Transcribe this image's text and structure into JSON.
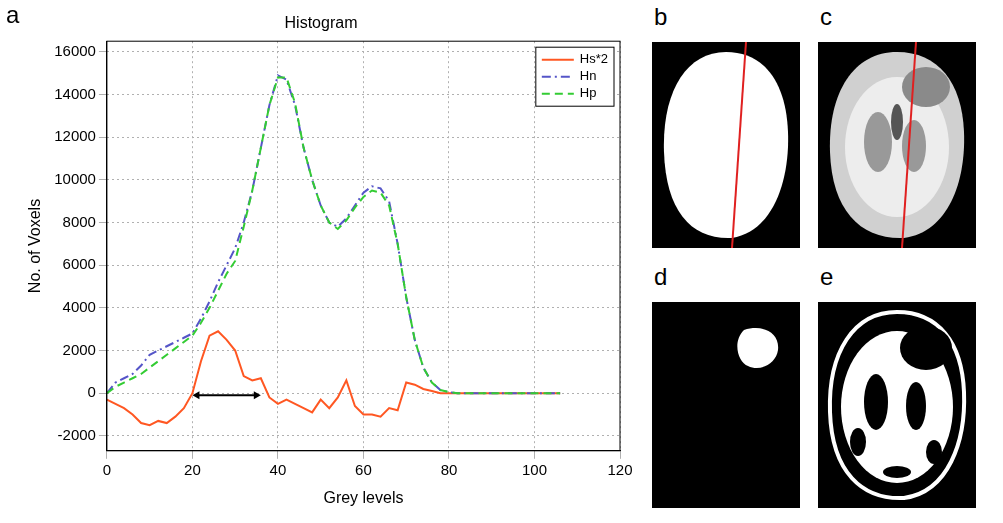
{
  "chart_data": {
    "type": "line",
    "title": "Histogram",
    "x_label": "Grey levels",
    "y_label": "No. of Voxels",
    "x": [
      0,
      2,
      4,
      6,
      8,
      10,
      12,
      14,
      16,
      18,
      20,
      22,
      24,
      26,
      28,
      30,
      32,
      34,
      36,
      38,
      40,
      42,
      44,
      46,
      48,
      50,
      52,
      54,
      56,
      58,
      60,
      62,
      64,
      66,
      68,
      70,
      72,
      74,
      76,
      78,
      80,
      82,
      84,
      86,
      88,
      90,
      92,
      94,
      96,
      98,
      100,
      102,
      104,
      106
    ],
    "series": [
      {
        "name": "Hs*2",
        "color": "#ff5722",
        "line_style": "solid",
        "values": [
          -300,
          -500,
          -700,
          -1000,
          -1400,
          -1500,
          -1300,
          -1400,
          -1100,
          -700,
          0,
          1500,
          2700,
          2900,
          2500,
          2000,
          800,
          600,
          700,
          -200,
          -500,
          -300,
          -500,
          -700,
          -900,
          -300,
          -700,
          -200,
          600,
          -600,
          -1000,
          -1000,
          -1100,
          -700,
          -800,
          500,
          400,
          200,
          100,
          0,
          0,
          0,
          0,
          0,
          0,
          0,
          0,
          0,
          0,
          0,
          0,
          0,
          0,
          0
        ]
      },
      {
        "name": "Hn",
        "color": "#5555c8",
        "line_style": "dashdot",
        "values": [
          0,
          500,
          700,
          900,
          1300,
          1800,
          2000,
          2200,
          2400,
          2600,
          2800,
          3500,
          4300,
          5200,
          6000,
          6800,
          8000,
          9500,
          11500,
          13500,
          14900,
          14700,
          13500,
          11500,
          10000,
          8800,
          8000,
          7800,
          8200,
          8800,
          9400,
          9700,
          9600,
          9000,
          7000,
          4500,
          2500,
          1200,
          500,
          150,
          50,
          0,
          0,
          0,
          0,
          0,
          0,
          0,
          0,
          0,
          0,
          0,
          0,
          0
        ]
      },
      {
        "name": "Hp",
        "color": "#33cc33",
        "line_style": "dashed",
        "values": [
          0,
          300,
          500,
          700,
          900,
          1200,
          1500,
          1800,
          2100,
          2400,
          2700,
          3300,
          4000,
          4800,
          5600,
          6200,
          7800,
          9500,
          11500,
          13500,
          14800,
          14800,
          13600,
          11500,
          10000,
          8800,
          8000,
          7700,
          8100,
          8700,
          9200,
          9500,
          9400,
          8800,
          7000,
          4500,
          2500,
          1200,
          500,
          150,
          50,
          0,
          0,
          0,
          0,
          0,
          0,
          0,
          0,
          0,
          0,
          0,
          0,
          0
        ]
      }
    ],
    "xlim": [
      0,
      120
    ],
    "xticks": [
      0,
      20,
      40,
      60,
      80,
      100,
      120
    ],
    "ylim": [
      -2700,
      16500
    ],
    "yticks": [
      -2000,
      0,
      2000,
      4000,
      6000,
      8000,
      10000,
      12000,
      14000,
      16000
    ],
    "grid": true,
    "legend": "upper right",
    "arrow": {
      "x": [
        20,
        36
      ],
      "y": -100
    }
  },
  "panel_labels": [
    "a",
    "b",
    "c",
    "d",
    "e"
  ]
}
